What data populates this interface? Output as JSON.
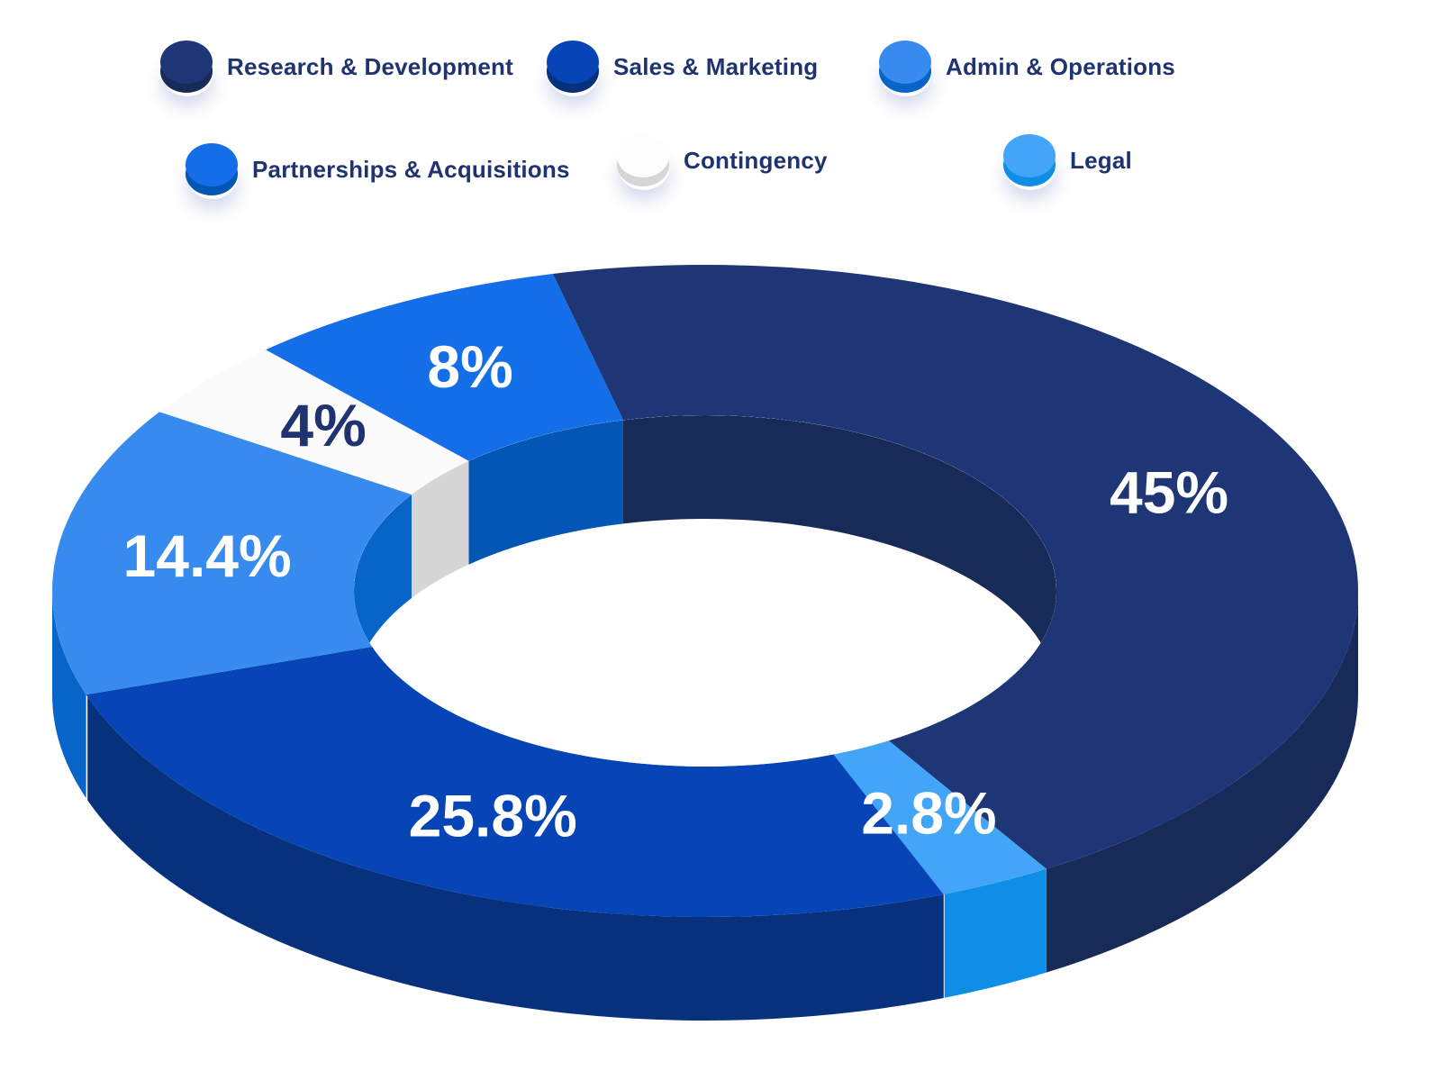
{
  "chart_data": {
    "type": "pie",
    "style": "3d-donut",
    "series": [
      {
        "name": "Research & Development",
        "value": 45,
        "label": "45%",
        "color": "#1e3676",
        "side_color": "#182b58",
        "label_color": "#ffffff"
      },
      {
        "name": "Legal",
        "value": 2.8,
        "label": "2.8%",
        "color": "#42a5f8",
        "side_color": "#0e8ee6",
        "label_color": "#ffffff"
      },
      {
        "name": "Sales & Marketing",
        "value": 25.8,
        "label": "25.8%",
        "color": "#0745b6",
        "side_color": "#07317c",
        "label_color": "#ffffff"
      },
      {
        "name": "Admin & Operations",
        "value": 14.4,
        "label": "14.4%",
        "color": "#388bee",
        "side_color": "#0764c8",
        "label_color": "#ffffff"
      },
      {
        "name": "Contingency",
        "value": 4,
        "label": "4%",
        "color": "#fbfbfb",
        "side_color": "#d6d6d6",
        "label_color": "#1e3370"
      },
      {
        "name": "Partnerships & Acquisitions",
        "value": 8,
        "label": "8%",
        "color": "#136ee8",
        "side_color": "#0356b4",
        "label_color": "#ffffff"
      }
    ],
    "legend": {
      "placement": "top",
      "rows": [
        [
          "Research & Development",
          "Sales & Marketing",
          "Admin & Operations"
        ],
        [
          "Partnerships & Acquisitions",
          "Contingency",
          "Legal"
        ]
      ]
    }
  }
}
